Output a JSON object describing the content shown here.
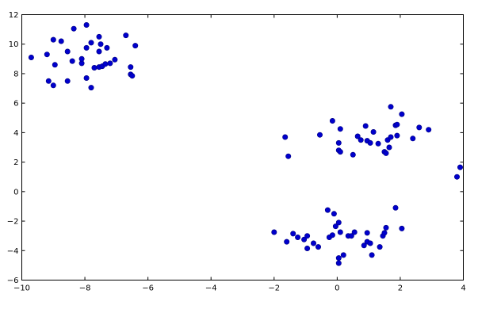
{
  "chart_data": {
    "type": "scatter",
    "title": "",
    "xlabel": "",
    "ylabel": "",
    "xlim": [
      -10,
      4
    ],
    "ylim": [
      -6,
      12
    ],
    "grid": false,
    "marker_color": "#0000cc",
    "marker_edge_color": "#000080",
    "x_ticks": [
      -10,
      -8,
      -6,
      -4,
      -2,
      0,
      2,
      4
    ],
    "y_ticks": [
      -6,
      -4,
      -2,
      0,
      2,
      4,
      6,
      8,
      10,
      12
    ],
    "series": [
      {
        "points": [
          [
            -9.7,
            9.1
          ],
          [
            -9.2,
            9.3
          ],
          [
            -9.0,
            10.3
          ],
          [
            -8.75,
            10.2
          ],
          [
            -8.35,
            11.05
          ],
          [
            -7.95,
            11.3
          ],
          [
            -6.7,
            10.6
          ],
          [
            -6.4,
            9.9
          ],
          [
            -9.15,
            7.5
          ],
          [
            -9.0,
            7.2
          ],
          [
            -8.95,
            8.6
          ],
          [
            -8.55,
            9.5
          ],
          [
            -8.4,
            8.85
          ],
          [
            -8.1,
            8.7
          ],
          [
            -8.1,
            9.0
          ],
          [
            -7.95,
            9.75
          ],
          [
            -7.8,
            10.1
          ],
          [
            -7.55,
            10.5
          ],
          [
            -7.5,
            10.0
          ],
          [
            -7.55,
            9.5
          ],
          [
            -7.3,
            9.75
          ],
          [
            -7.95,
            7.7
          ],
          [
            -7.8,
            7.05
          ],
          [
            -8.55,
            7.5
          ],
          [
            -7.7,
            8.4
          ],
          [
            -7.55,
            8.45
          ],
          [
            -7.45,
            8.5
          ],
          [
            -7.35,
            8.65
          ],
          [
            -7.2,
            8.7
          ],
          [
            -7.05,
            8.95
          ],
          [
            -6.55,
            8.45
          ],
          [
            -6.55,
            7.95
          ],
          [
            -6.5,
            7.85
          ],
          [
            -1.65,
            3.7
          ],
          [
            -1.55,
            2.4
          ],
          [
            -0.55,
            3.85
          ],
          [
            -0.15,
            4.8
          ],
          [
            0.1,
            4.25
          ],
          [
            0.05,
            3.3
          ],
          [
            0.05,
            2.8
          ],
          [
            0.1,
            2.7
          ],
          [
            0.5,
            2.5
          ],
          [
            0.65,
            3.75
          ],
          [
            0.75,
            3.5
          ],
          [
            0.9,
            4.45
          ],
          [
            0.95,
            3.45
          ],
          [
            1.05,
            3.3
          ],
          [
            1.15,
            4.05
          ],
          [
            1.3,
            3.25
          ],
          [
            1.5,
            2.7
          ],
          [
            1.55,
            2.6
          ],
          [
            1.6,
            3.5
          ],
          [
            1.65,
            3.0
          ],
          [
            1.7,
            5.75
          ],
          [
            1.7,
            3.7
          ],
          [
            1.85,
            4.5
          ],
          [
            1.9,
            4.55
          ],
          [
            1.9,
            3.8
          ],
          [
            2.05,
            5.25
          ],
          [
            2.4,
            3.6
          ],
          [
            2.6,
            4.35
          ],
          [
            2.9,
            4.2
          ],
          [
            3.8,
            1.0
          ],
          [
            3.9,
            1.65
          ],
          [
            -2.0,
            -2.75
          ],
          [
            -1.6,
            -3.4
          ],
          [
            -1.4,
            -2.85
          ],
          [
            -1.25,
            -3.1
          ],
          [
            -1.05,
            -3.25
          ],
          [
            -0.95,
            -3.0
          ],
          [
            -0.95,
            -3.85
          ],
          [
            -0.75,
            -3.5
          ],
          [
            -0.6,
            -3.75
          ],
          [
            -0.3,
            -1.25
          ],
          [
            -0.25,
            -3.1
          ],
          [
            -0.15,
            -2.95
          ],
          [
            -0.1,
            -1.5
          ],
          [
            -0.05,
            -2.35
          ],
          [
            0.05,
            -2.1
          ],
          [
            0.05,
            -4.5
          ],
          [
            0.05,
            -4.85
          ],
          [
            0.1,
            -2.75
          ],
          [
            0.2,
            -4.3
          ],
          [
            0.35,
            -3.0
          ],
          [
            0.45,
            -3.0
          ],
          [
            0.55,
            -2.75
          ],
          [
            0.85,
            -3.65
          ],
          [
            0.95,
            -2.8
          ],
          [
            0.95,
            -3.4
          ],
          [
            1.05,
            -3.5
          ],
          [
            1.1,
            -4.3
          ],
          [
            1.35,
            -3.75
          ],
          [
            1.45,
            -3.0
          ],
          [
            1.5,
            -2.8
          ],
          [
            1.55,
            -2.45
          ],
          [
            1.85,
            -1.1
          ],
          [
            2.05,
            -2.5
          ]
        ]
      }
    ]
  }
}
